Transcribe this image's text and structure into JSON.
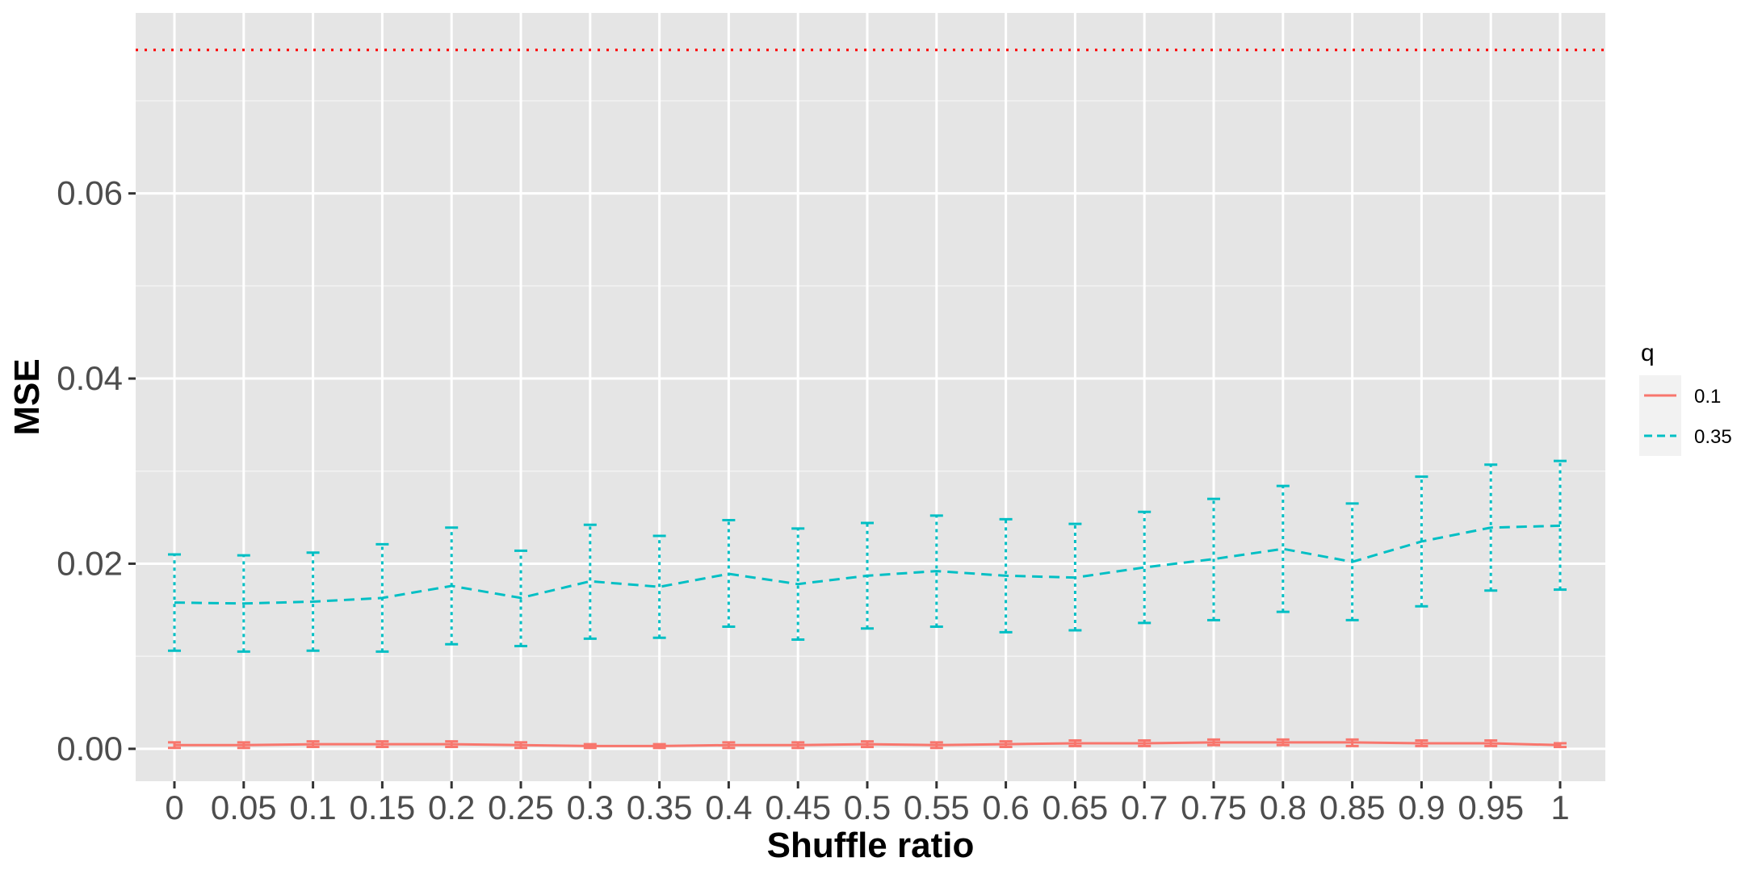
{
  "chart_data": {
    "type": "line",
    "xlabel": "Shuffle ratio",
    "ylabel": "MSE",
    "categories": [
      "0",
      "0.05",
      "0.1",
      "0.15",
      "0.2",
      "0.25",
      "0.3",
      "0.35",
      "0.4",
      "0.45",
      "0.5",
      "0.55",
      "0.6",
      "0.65",
      "0.7",
      "0.75",
      "0.8",
      "0.85",
      "0.9",
      "0.95",
      "1"
    ],
    "ylim": [
      -0.0035,
      0.0795
    ],
    "yticks": [
      "0.00",
      "0.02",
      "0.04",
      "0.06"
    ],
    "ytick_values": [
      0,
      0.02,
      0.04,
      0.06
    ],
    "grid": true,
    "background": "#e5e5e5",
    "reference_line": {
      "y": 0.0755,
      "color": "#ff0000",
      "style": "dotted"
    },
    "legend": {
      "title": "q",
      "position": "right"
    },
    "series": [
      {
        "name": "0.1",
        "color": "#f8766d",
        "dash": "solid",
        "values": [
          0.0004,
          0.0004,
          0.0005,
          0.0005,
          0.0005,
          0.0004,
          0.0003,
          0.0003,
          0.0004,
          0.0004,
          0.0005,
          0.0004,
          0.0005,
          0.0006,
          0.0006,
          0.0007,
          0.0007,
          0.0007,
          0.0006,
          0.0006,
          0.0004
        ],
        "lower": [
          0.0001,
          0.0001,
          0.0002,
          0.0002,
          0.0002,
          0.0001,
          0.0001,
          0.0001,
          0.0001,
          0.0001,
          0.0002,
          0.0001,
          0.0002,
          0.0003,
          0.0003,
          0.0004,
          0.0004,
          0.0003,
          0.0003,
          0.0003,
          0.0002
        ],
        "upper": [
          0.0007,
          0.0007,
          0.0008,
          0.0008,
          0.0008,
          0.0007,
          0.0005,
          0.0005,
          0.0007,
          0.0007,
          0.0008,
          0.0007,
          0.0008,
          0.0009,
          0.0009,
          0.001,
          0.001,
          0.001,
          0.0009,
          0.0009,
          0.0006
        ]
      },
      {
        "name": "0.35",
        "color": "#00bfc4",
        "dash": "dashed",
        "values": [
          0.0158,
          0.0157,
          0.0159,
          0.0163,
          0.0176,
          0.0163,
          0.0181,
          0.0175,
          0.0189,
          0.0178,
          0.0187,
          0.0192,
          0.0187,
          0.0185,
          0.0196,
          0.0205,
          0.0216,
          0.0202,
          0.0224,
          0.0239,
          0.0241
        ],
        "lower": [
          0.0106,
          0.0105,
          0.0106,
          0.0105,
          0.0113,
          0.0111,
          0.0119,
          0.012,
          0.0132,
          0.0118,
          0.013,
          0.0132,
          0.0126,
          0.0128,
          0.0136,
          0.0139,
          0.0148,
          0.0139,
          0.0154,
          0.0171,
          0.0172
        ],
        "upper": [
          0.021,
          0.0209,
          0.0212,
          0.0221,
          0.0239,
          0.0214,
          0.0242,
          0.023,
          0.0247,
          0.0238,
          0.0244,
          0.0252,
          0.0248,
          0.0243,
          0.0256,
          0.027,
          0.0284,
          0.0265,
          0.0294,
          0.0307,
          0.0311
        ]
      }
    ]
  }
}
